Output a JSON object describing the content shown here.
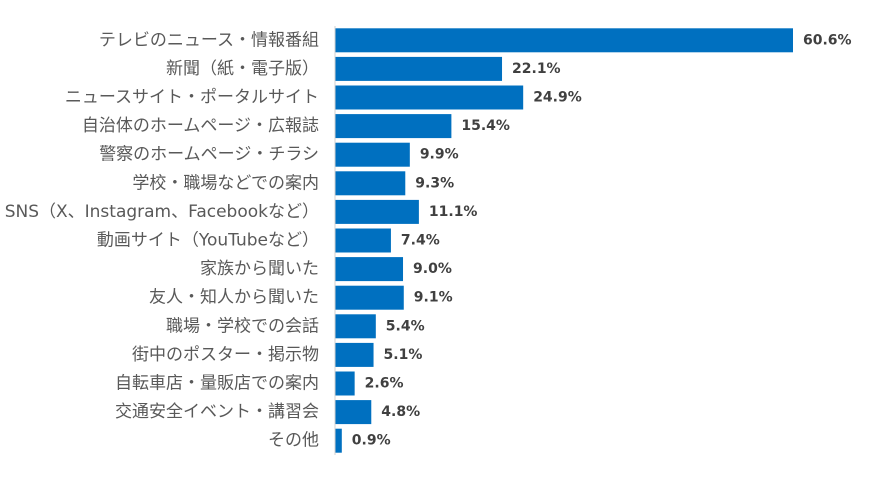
{
  "chart_data": {
    "type": "bar",
    "orientation": "horizontal",
    "categories": [
      "テレビのニュース・情報番組",
      "新聞（紙・電子版）",
      "ニュースサイト・ポータルサイト",
      "自治体のホームページ・広報誌",
      "警察のホームページ・チラシ",
      "学校・職場などでの案内",
      "SNS（X、Instagram、Facebookなど）",
      "動画サイト（YouTubeなど）",
      "家族から聞いた",
      "友人・知人から聞いた",
      "職場・学校での会話",
      "街中のポスター・掲示物",
      "自転車店・量販店での案内",
      "交通安全イベント・講習会",
      "その他"
    ],
    "values": [
      60.6,
      22.1,
      24.9,
      15.4,
      9.9,
      9.3,
      11.1,
      7.4,
      9.0,
      9.1,
      5.4,
      5.1,
      2.6,
      4.8,
      0.9
    ],
    "value_labels": [
      "60.6%",
      "22.1%",
      "24.9%",
      "15.4%",
      "9.9%",
      "9.3%",
      "11.1%",
      "7.4%",
      "9.0%",
      "9.1%",
      "5.4%",
      "5.1%",
      "2.6%",
      "4.8%",
      "0.9%"
    ],
    "unit": "%",
    "xlim": [
      0,
      70
    ],
    "grid": false,
    "legend": "none",
    "bar_color": "#0070C0",
    "axis_color": "#d0d0d0",
    "label_color": "#595959",
    "value_label_color": "#404040"
  }
}
